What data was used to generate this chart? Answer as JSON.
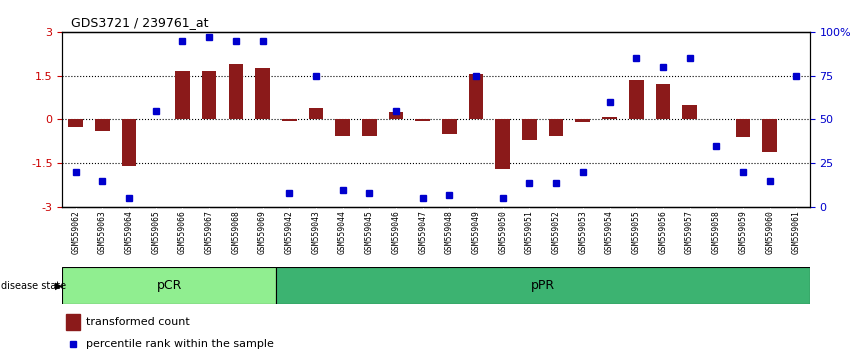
{
  "title": "GDS3721 / 239761_at",
  "samples": [
    "GSM559062",
    "GSM559063",
    "GSM559064",
    "GSM559065",
    "GSM559066",
    "GSM559067",
    "GSM559068",
    "GSM559069",
    "GSM559042",
    "GSM559043",
    "GSM559044",
    "GSM559045",
    "GSM559046",
    "GSM559047",
    "GSM559048",
    "GSM559049",
    "GSM559050",
    "GSM559051",
    "GSM559052",
    "GSM559053",
    "GSM559054",
    "GSM559055",
    "GSM559056",
    "GSM559057",
    "GSM559058",
    "GSM559059",
    "GSM559060",
    "GSM559061"
  ],
  "bar_values": [
    -0.25,
    -0.4,
    -1.58,
    0.02,
    1.65,
    1.65,
    1.9,
    1.75,
    -0.05,
    0.4,
    -0.55,
    -0.55,
    0.25,
    -0.05,
    -0.5,
    1.55,
    -1.7,
    -0.7,
    -0.55,
    -0.1,
    0.1,
    1.35,
    1.2,
    0.5,
    0.02,
    -0.6,
    -1.1,
    0.02
  ],
  "dot_values": [
    20,
    15,
    5,
    55,
    95,
    97,
    95,
    95,
    8,
    75,
    10,
    8,
    55,
    5,
    7,
    75,
    5,
    14,
    14,
    20,
    60,
    85,
    80,
    85,
    35,
    20,
    15,
    75
  ],
  "pCR_count": 8,
  "pPR_count": 20,
  "ylim": [
    -3,
    3
  ],
  "bar_color": "#8B1A1A",
  "dot_color": "#0000CD",
  "pCR_color": "#90EE90",
  "pPR_color": "#3CB371",
  "xtick_bg_color": "#C0C0C0",
  "disease_state_label": "disease state",
  "legend_bar": "transformed count",
  "legend_dot": "percentile rank within the sample",
  "right_tick_labels": [
    "0",
    "25",
    "50",
    "75",
    "100%"
  ],
  "left_tick_labels": [
    "-3",
    "-1.5",
    "0",
    "1.5",
    "3"
  ],
  "ytick_positions": [
    -3,
    -1.5,
    0,
    1.5,
    3
  ]
}
